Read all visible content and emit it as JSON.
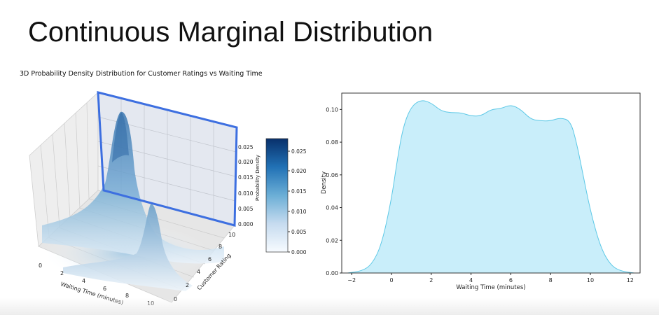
{
  "slide": {
    "title": "Continuous Marginal Distribution"
  },
  "colors": {
    "highlight_frame": "#3d6fe0",
    "kde_fill": "#c9eefa",
    "kde_line": "#5cc8e6",
    "density_dark": "#1f4e84",
    "density_light": "#f4f8fc"
  },
  "chart_data": [
    {
      "type": "surface3d",
      "title": "3D Probability Density Distribution for Customer Ratings vs Waiting Time",
      "xlabel": "Waiting Time (minutes)",
      "ylabel": "Customer Rating",
      "zlabel": "Probability Density",
      "x_ticks": [
        "0",
        "2",
        "4",
        "6",
        "8",
        "10"
      ],
      "y_ticks": [
        "0",
        "2",
        "4",
        "6",
        "8",
        "10"
      ],
      "z_ticks": [
        "0.000",
        "0.005",
        "0.010",
        "0.015",
        "0.020",
        "0.025"
      ],
      "xlim": [
        0,
        10
      ],
      "ylim": [
        0,
        10
      ],
      "zlim": [
        0,
        0.028
      ],
      "highlighted_plane": "Waiting Time (minutes) = 0",
      "peaks": [
        {
          "x": 5,
          "y": 8,
          "z": 0.028
        },
        {
          "x": 5,
          "y": 3,
          "z": 0.012
        }
      ],
      "colorbar": {
        "ticks": [
          "0.000",
          "0.005",
          "0.010",
          "0.015",
          "0.020",
          "0.025"
        ],
        "range": [
          0,
          0.028
        ],
        "colormap": "Blues"
      }
    },
    {
      "type": "area",
      "title": "",
      "xlabel": "Waiting Time (minutes)",
      "ylabel": "Density",
      "xlim": [
        -2.5,
        12.5
      ],
      "ylim": [
        0,
        0.11
      ],
      "x_ticks": [
        "−2",
        "0",
        "2",
        "4",
        "6",
        "8",
        "10",
        "12"
      ],
      "y_ticks": [
        "0.00",
        "0.02",
        "0.04",
        "0.06",
        "0.08",
        "0.10"
      ],
      "grid": false,
      "x": [
        -2.2,
        -1.5,
        -1.0,
        -0.5,
        0,
        0.3,
        0.6,
        1.0,
        1.5,
        2.0,
        2.5,
        3.0,
        3.5,
        4.0,
        4.5,
        5.0,
        5.5,
        6.0,
        6.5,
        7.0,
        7.5,
        8.0,
        8.5,
        9.0,
        9.3,
        9.6,
        10.0,
        10.5,
        11.0,
        11.5,
        12.2
      ],
      "values": [
        0.0,
        0.0012,
        0.005,
        0.017,
        0.045,
        0.07,
        0.09,
        0.102,
        0.106,
        0.104,
        0.099,
        0.098,
        0.098,
        0.096,
        0.096,
        0.1,
        0.1005,
        0.103,
        0.1,
        0.094,
        0.093,
        0.093,
        0.095,
        0.093,
        0.08,
        0.062,
        0.038,
        0.016,
        0.005,
        0.0012,
        0.0
      ]
    }
  ]
}
